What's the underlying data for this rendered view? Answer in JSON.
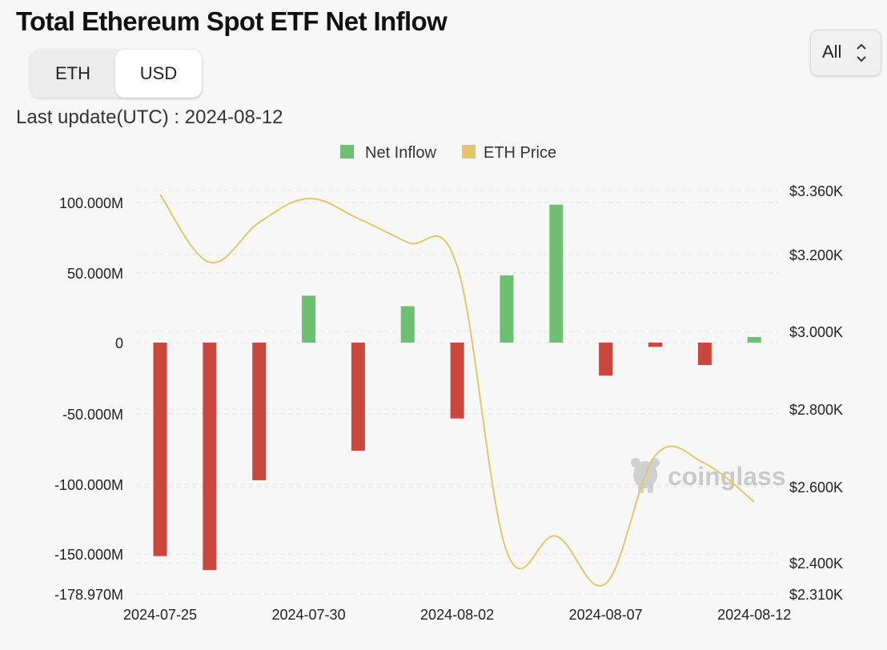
{
  "title": "Total Ethereum Spot ETF Net Inflow",
  "unit_toggle": {
    "options": [
      "ETH",
      "USD"
    ],
    "selected": "USD"
  },
  "range_select": {
    "value": "All"
  },
  "last_update": "Last update(UTC) : 2024-08-12",
  "watermark": "coinglass",
  "colors": {
    "positive": "#6cc070",
    "negative": "#c9473d",
    "price_line": "#e3c66a"
  },
  "chart_data": {
    "type": "bar",
    "legend": [
      "Net Inflow",
      "ETH Price"
    ],
    "legend_position": "top-center",
    "x": [
      "2024-07-25",
      "2024-07-26",
      "2024-07-29",
      "2024-07-30",
      "2024-07-31",
      "2024-08-01",
      "2024-08-02",
      "2024-08-05",
      "2024-08-06",
      "2024-08-07",
      "2024-08-08",
      "2024-08-09",
      "2024-08-12"
    ],
    "x_ticks": [
      "2024-07-25",
      "2024-07-30",
      "2024-08-02",
      "2024-08-07",
      "2024-08-12"
    ],
    "series": [
      {
        "name": "Net Inflow",
        "axis": "left",
        "values": [
          -152,
          -162,
          -98,
          33.5,
          -77,
          26,
          -54,
          48,
          98.5,
          -23.5,
          -3,
          -16,
          4
        ]
      },
      {
        "name": "ETH Price",
        "axis": "right",
        "type": "line",
        "values": [
          3350,
          3180,
          3280,
          3340,
          3290,
          3230,
          3170,
          2430,
          2470,
          2340,
          2680,
          2660,
          2560
        ]
      }
    ],
    "y_left": {
      "min": -178.97,
      "max": 100,
      "ticks": [
        "100.000M",
        "50.000M",
        "0",
        "-50.000M",
        "-100.000M",
        "-150.000M",
        "-178.970M"
      ]
    },
    "y_right": {
      "min": 2310,
      "max": 3360,
      "ticks": [
        "$3.360K",
        "$3.200K",
        "$3.000K",
        "$2.800K",
        "$2.600K",
        "$2.400K",
        "$2.310K"
      ]
    },
    "grid": true
  }
}
